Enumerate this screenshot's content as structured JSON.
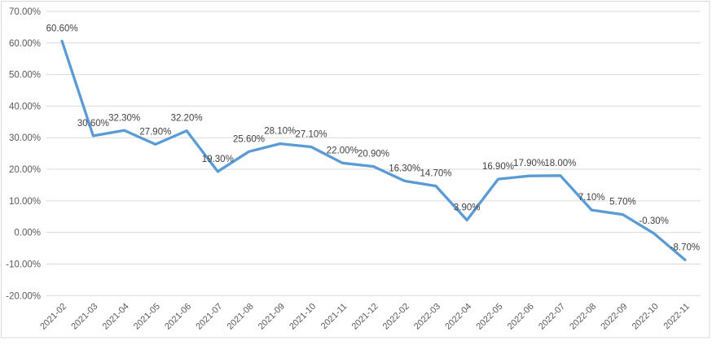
{
  "chart_data": {
    "type": "line",
    "title": "",
    "series_name": "",
    "legend": "none",
    "grid": "horizontal",
    "categories": [
      "2021-02",
      "2021-03",
      "2021-04",
      "2021-05",
      "2021-06",
      "2021-07",
      "2021-08",
      "2021-09",
      "2021-10",
      "2021-11",
      "2021-12",
      "2022-02",
      "2022-03",
      "2022-04",
      "2022-05",
      "2022-06",
      "2022-07",
      "2022-08",
      "2022-09",
      "2022-10",
      "2022-11"
    ],
    "values": [
      60.6,
      30.6,
      32.3,
      27.9,
      32.2,
      19.3,
      25.6,
      28.1,
      27.1,
      22.0,
      20.9,
      16.3,
      14.7,
      3.9,
      16.9,
      17.9,
      18.0,
      7.1,
      5.7,
      -0.3,
      -8.7
    ],
    "point_labels": [
      "60.60%",
      "30.60%",
      "32.30%",
      "27.90%",
      "32.20%",
      "19.30%",
      "25.60%",
      "28.10%",
      "27.10%",
      "22.00%",
      "20.90%",
      "16.30%",
      "14.70%",
      "3.90%",
      "16.90%",
      "17.90%",
      "18.00%",
      "7.10%",
      "5.70%",
      "-0.30%",
      "-8.70%"
    ],
    "ylim": [
      -20,
      70
    ],
    "ytick_values": [
      70,
      60,
      50,
      40,
      30,
      20,
      10,
      0,
      -10,
      -20
    ],
    "ytick_labels": [
      "70.00%",
      "60.00%",
      "50.00%",
      "40.00%",
      "30.00%",
      "20.00%",
      "10.00%",
      "0.00%",
      "-10.00%",
      "-20.00%"
    ],
    "xlabel": "",
    "ylabel": "",
    "colors": {
      "line": "#5B9BD5",
      "gridline": "#D9D9D9",
      "chart_border": "#D9D9D9",
      "axis_text": "#595959",
      "data_label_text": "#404040",
      "background": "#FFFFFF"
    }
  }
}
